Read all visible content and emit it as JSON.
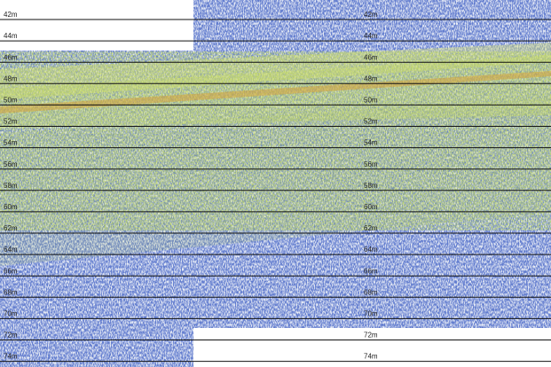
{
  "depth_labels": [
    "42m",
    "44m",
    "46m",
    "48m",
    "50m",
    "52m",
    "54m",
    "56m",
    "58m",
    "60m",
    "62m",
    "64m",
    "66m",
    "68m",
    "70m",
    "72m",
    "74m"
  ]
}
